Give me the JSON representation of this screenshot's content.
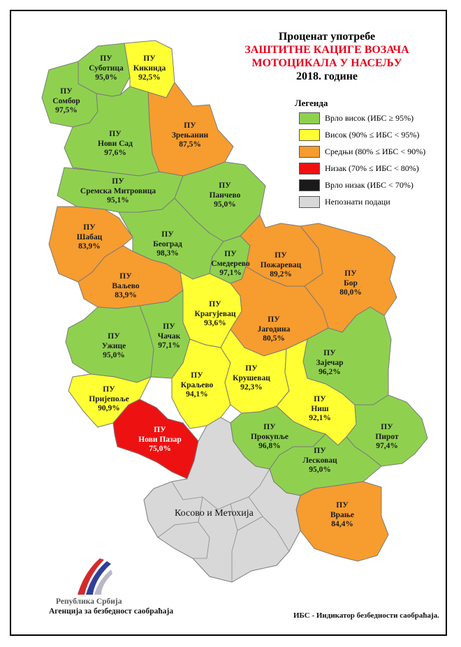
{
  "title": {
    "line1": "Проценат употребе",
    "line2": "ЗАШТИТНЕ КАЦИГЕ ВОЗАЧА",
    "line3": "МОТОЦИКАЛА У НАСЕЉУ",
    "line4": "2018. године",
    "highlight_color": "#e8001c"
  },
  "legend": {
    "heading": "Легенда",
    "items": [
      {
        "label": "Врло висок (ИБС ≥ 95%)",
        "color": "#8fd14f"
      },
      {
        "label": "Висок (90% ≤ ИБС < 95%)",
        "color": "#ffff33"
      },
      {
        "label": "Средњи (80% ≤ ИБС < 90%)",
        "color": "#f79c2f"
      },
      {
        "label": "Низак (70% ≤ ИБС < 80%)",
        "color": "#ee1111"
      },
      {
        "label": "Врло низак (ИБС < 70%)",
        "color": "#1a1a1a"
      },
      {
        "label": "Непознати подаци",
        "color": "#d8d8d8"
      }
    ]
  },
  "regions": [
    {
      "name": "ПУ",
      "city": "Суботица",
      "value": "95,0%",
      "category": "very-high"
    },
    {
      "name": "ПУ",
      "city": "Кикинда",
      "value": "92,5%",
      "category": "high"
    },
    {
      "name": "ПУ",
      "city": "Сомбор",
      "value": "97,5%",
      "category": "very-high"
    },
    {
      "name": "ПУ",
      "city": "Зрењанин",
      "value": "87,5%",
      "category": "medium"
    },
    {
      "name": "ПУ",
      "city": "Нови Сад",
      "value": "97,6%",
      "category": "very-high"
    },
    {
      "name": "ПУ",
      "city": "Сремска Митровица",
      "value": "95,1%",
      "category": "very-high"
    },
    {
      "name": "ПУ",
      "city": "Панчево",
      "value": "95,0%",
      "category": "very-high"
    },
    {
      "name": "ПУ",
      "city": "Шабац",
      "value": "83,9%",
      "category": "medium"
    },
    {
      "name": "ПУ",
      "city": "Београд",
      "value": "98,3%",
      "category": "very-high"
    },
    {
      "name": "ПУ",
      "city": "Смедерево",
      "value": "97,1%",
      "category": "very-high"
    },
    {
      "name": "ПУ",
      "city": "Пожаревац",
      "value": "89,2%",
      "category": "medium"
    },
    {
      "name": "ПУ",
      "city": "Ваљево",
      "value": "83,9%",
      "category": "medium"
    },
    {
      "name": "ПУ",
      "city": "Бор",
      "value": "80,0%",
      "category": "medium"
    },
    {
      "name": "ПУ",
      "city": "Крагујевац",
      "value": "93,6%",
      "category": "high"
    },
    {
      "name": "ПУ",
      "city": "Ужице",
      "value": "95,0%",
      "category": "very-high"
    },
    {
      "name": "ПУ",
      "city": "Чачак",
      "value": "97,1%",
      "category": "very-high"
    },
    {
      "name": "ПУ",
      "city": "Јагодина",
      "value": "80,5%",
      "category": "medium"
    },
    {
      "name": "ПУ",
      "city": "Зајечар",
      "value": "96,2%",
      "category": "very-high"
    },
    {
      "name": "ПУ",
      "city": "Краљево",
      "value": "94,1%",
      "category": "high"
    },
    {
      "name": "ПУ",
      "city": "Крушевац",
      "value": "92,3%",
      "category": "high"
    },
    {
      "name": "ПУ",
      "city": "Пријепоље",
      "value": "90,9%",
      "category": "high"
    },
    {
      "name": "ПУ",
      "city": "Ниш",
      "value": "92,1%",
      "category": "high"
    },
    {
      "name": "ПУ",
      "city": "Нови Пазар",
      "value": "75,0%",
      "category": "low"
    },
    {
      "name": "ПУ",
      "city": "Прокупље",
      "value": "96,8%",
      "category": "very-high"
    },
    {
      "name": "ПУ",
      "city": "Пирот",
      "value": "97,4%",
      "category": "very-high"
    },
    {
      "name": "ПУ",
      "city": "Лесковац",
      "value": "95,0%",
      "category": "very-high"
    },
    {
      "name": "ПУ",
      "city": "Врање",
      "value": "84,4%",
      "category": "medium"
    }
  ],
  "kosovo_label": "Косово и Метохија",
  "organization": {
    "line1": "Република Србија",
    "line2": "Агенција за безбедност саобраћаја",
    "logo_icon": "road-stripes-logo"
  },
  "footnote": "ИБС - Индикатор безбедности саобраћаја."
}
